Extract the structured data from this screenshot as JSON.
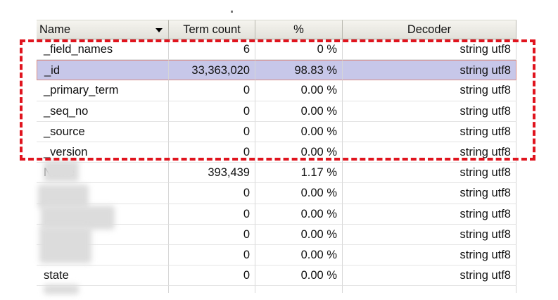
{
  "table": {
    "columns": [
      {
        "label": "Name",
        "sortable": true
      },
      {
        "label": "Term count"
      },
      {
        "label": "%"
      },
      {
        "label": "Decoder"
      }
    ],
    "rows": [
      {
        "name": "_field_names",
        "term_count": "6",
        "percent": "0 %",
        "decoder": "string utf8",
        "selected": false
      },
      {
        "name": "_id",
        "term_count": "33,363,020",
        "percent": "98.83 %",
        "decoder": "string utf8",
        "selected": true
      },
      {
        "name": "_primary_term",
        "term_count": "0",
        "percent": "0.00 %",
        "decoder": "string utf8",
        "selected": false
      },
      {
        "name": "_seq_no",
        "term_count": "0",
        "percent": "0.00 %",
        "decoder": "string utf8",
        "selected": false
      },
      {
        "name": "_source",
        "term_count": "0",
        "percent": "0.00 %",
        "decoder": "string utf8",
        "selected": false
      },
      {
        "name": "_version",
        "term_count": "0",
        "percent": "0.00 %",
        "decoder": "string utf8",
        "selected": false
      },
      {
        "name": "Name",
        "term_count": "393,439",
        "percent": "1.17 %",
        "decoder": "string utf8",
        "selected": false
      },
      {
        "name": "",
        "term_count": "0",
        "percent": "0.00 %",
        "decoder": "string utf8",
        "selected": false
      },
      {
        "name": "",
        "term_count": "0",
        "percent": "0.00 %",
        "decoder": "string utf8",
        "selected": false
      },
      {
        "name": "",
        "term_count": "0",
        "percent": "0.00 %",
        "decoder": "string utf8",
        "selected": false
      },
      {
        "name": "",
        "term_count": "0",
        "percent": "0.00 %",
        "decoder": "string utf8",
        "selected": false
      },
      {
        "name": "state",
        "term_count": "0",
        "percent": "0.00 %",
        "decoder": "string utf8",
        "selected": false
      },
      {
        "name": "",
        "term_count": "",
        "percent": "",
        "decoder": "",
        "selected": false
      }
    ]
  },
  "colors": {
    "selection_bg": "#c7c7e9",
    "selection_border": "#d98b84",
    "annotation_dash": "#e0141e"
  },
  "icons": {
    "sort": "chevron-down-icon"
  }
}
